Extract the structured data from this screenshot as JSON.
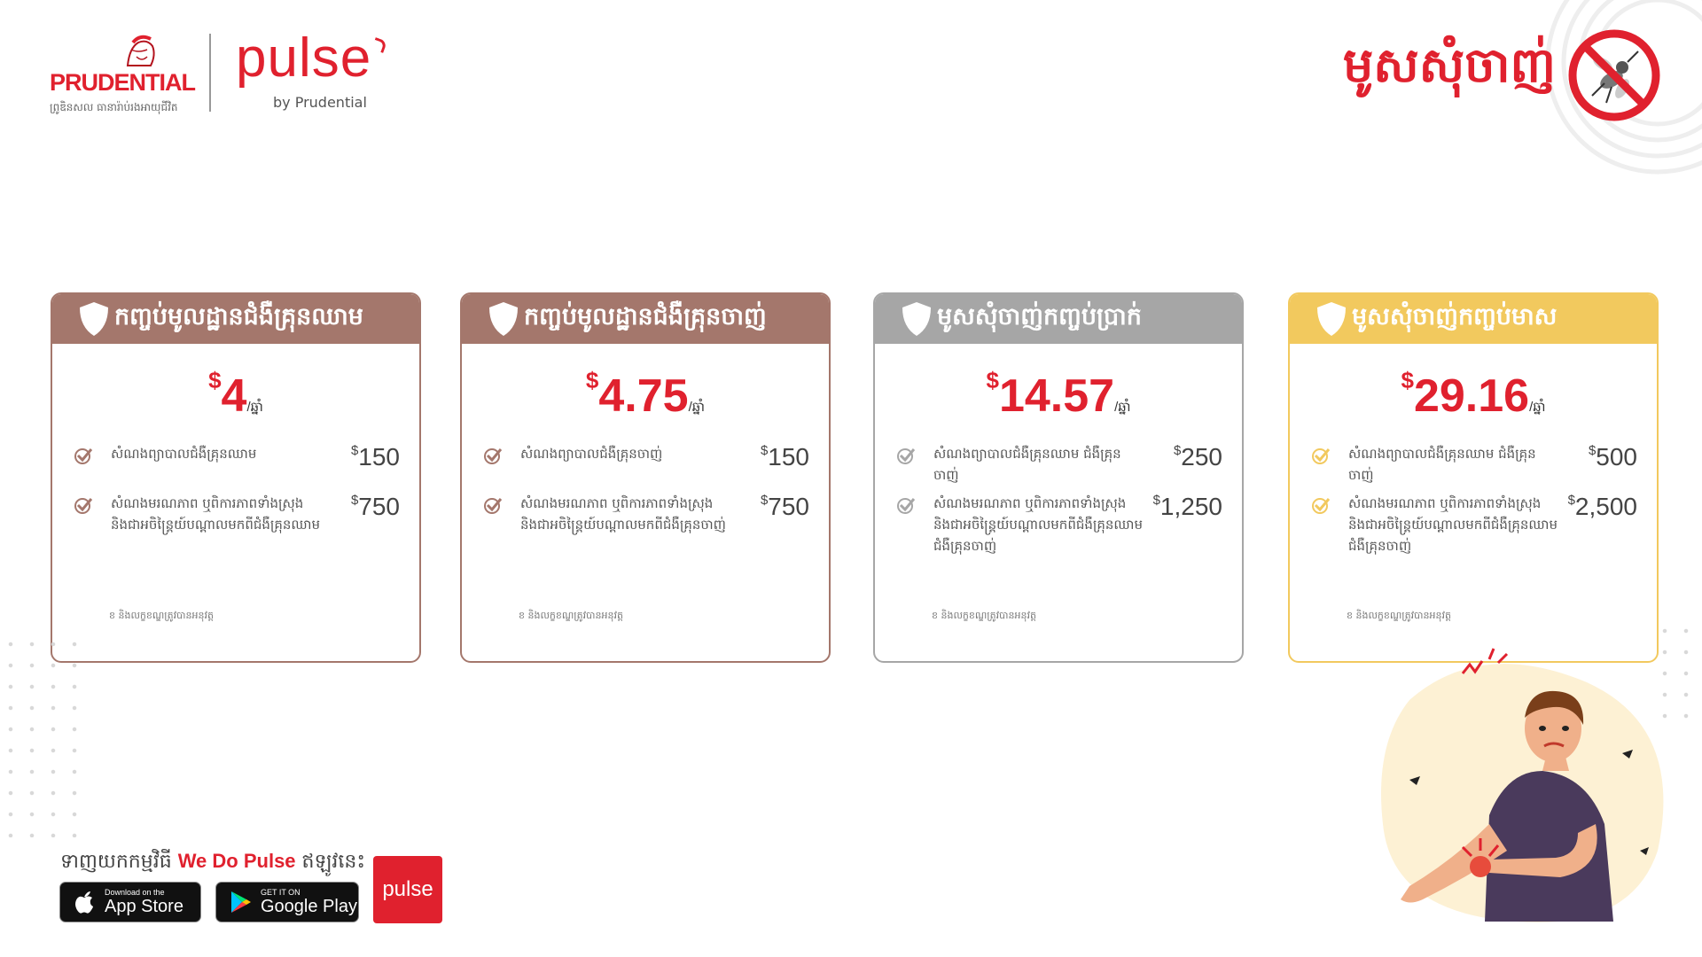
{
  "header": {
    "prudential_word": "PRUDENTIAL",
    "prudential_tagline": "ព្រូឌិនសល ធានារ៉ាប់រងអាយុជីវិត",
    "pulse_word": "pulse",
    "pulse_by": "by Prudential",
    "product_title": "មូសសុំចាញ់"
  },
  "plans": [
    {
      "title": "កញ្ចប់មូលដ្ឋានជំងឺគ្រុនឈាម",
      "price_currency": "$",
      "price_amount": "4",
      "price_period": "/ឆ្នាំ",
      "benefits": [
        {
          "text": "សំណងព្យាបាលជំងឺគ្រុនឈាម",
          "currency": "$",
          "amount": "150"
        },
        {
          "text": "សំណងមរណភាព ឬពិការភាពទាំងស្រុង និងជាអចិន្ត្រៃយ៍បណ្តាលមកពីជំងឺគ្រុនឈាម",
          "currency": "$",
          "amount": "750"
        }
      ],
      "note": "ខ និងលក្ខខណ្ឌត្រូវបានអនុវត្ត"
    },
    {
      "title": "កញ្ចប់មូលដ្ឋានជំងឺគ្រុនចាញ់",
      "price_currency": "$",
      "price_amount": "4.75",
      "price_period": "/ឆ្នាំ",
      "benefits": [
        {
          "text": "សំណងព្យាបាលជំងឺគ្រុនចាញ់",
          "currency": "$",
          "amount": "150"
        },
        {
          "text": "សំណងមរណភាព ឬពិការភាពទាំងស្រុង និងជាអចិន្ត្រៃយ៍បណ្តាលមកពីជំងឺគ្រុនចាញ់",
          "currency": "$",
          "amount": "750"
        }
      ],
      "note": "ខ និងលក្ខខណ្ឌត្រូវបានអនុវត្ត"
    },
    {
      "title": "មូសសុំចាញ់កញ្ចប់ប្រាក់",
      "price_currency": "$",
      "price_amount": "14.57",
      "price_period": "/ឆ្នាំ",
      "benefits": [
        {
          "text": "សំណងព្យាបាលជំងឺគ្រុនឈាម ជំងឺគ្រុនចាញ់",
          "currency": "$",
          "amount": "250"
        },
        {
          "text": "សំណងមរណភាព ឬពិការភាពទាំងស្រុង និងជាអចិន្ត្រៃយ៍បណ្តាលមកពីជំងឺគ្រុនឈាម ជំងឺគ្រុនចាញ់",
          "currency": "$",
          "amount": "1,250"
        }
      ],
      "note": "ខ និងលក្ខខណ្ឌត្រូវបានអនុវត្ត"
    },
    {
      "title": "មូសសុំចាញ់កញ្ចប់មាស",
      "price_currency": "$",
      "price_amount": "29.16",
      "price_period": "/ឆ្នាំ",
      "benefits": [
        {
          "text": "សំណងព្យាបាលជំងឺគ្រុនឈាម ជំងឺគ្រុនចាញ់",
          "currency": "$",
          "amount": "500"
        },
        {
          "text": "សំណងមរណភាព ឬពិការភាពទាំងស្រុង និងជាអចិន្ត្រៃយ៍បណ្តាលមកពីជំងឺគ្រុនឈាម ជំងឺគ្រុនចាញ់",
          "currency": "$",
          "amount": "2,500"
        }
      ],
      "note": "ខ និងលក្ខខណ្ឌត្រូវបានអនុវត្ត"
    }
  ],
  "colors": {
    "brand_red": "#e0212e",
    "plan_1_header": "#a4776c",
    "plan_2_header": "#a4776c",
    "plan_3_header": "#a6a6a6",
    "plan_4_header": "#f2c95e"
  },
  "download": {
    "prefix": "ទាញយកកម្មវិធី",
    "brand": "We Do Pulse",
    "suffix": "ឥឡូវនេះ",
    "app_store_small": "Download on the",
    "app_store_big": "App Store",
    "google_play_small": "GET IT ON",
    "google_play_big": "Google Play",
    "pulse_app_label": "pulse"
  },
  "icons": {
    "shield": "shield-icon",
    "check": "check-icon",
    "no_mosquito": "no-mosquito-icon",
    "apple": "apple-icon",
    "google_play": "google-play-icon"
  }
}
